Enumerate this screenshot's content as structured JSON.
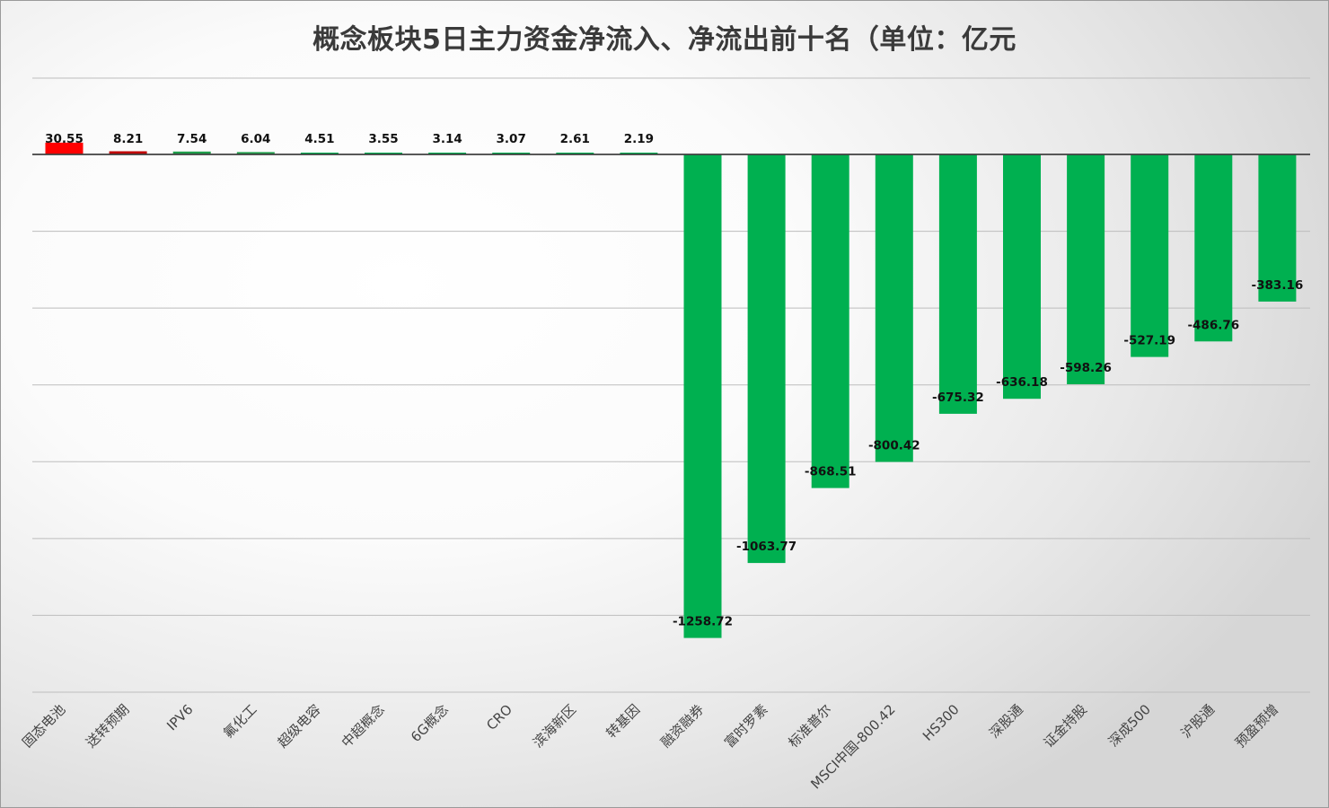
{
  "chart_data": {
    "type": "bar",
    "title": "概念板块5日主力资金净流入、净流出前十名（单位：亿元",
    "xlabel": "",
    "ylabel": "",
    "grid": true,
    "legend": "none",
    "ylim": [
      -1400,
      0
    ],
    "categories": [
      "固态电池",
      "送转预期",
      "IPV6",
      "氟化工",
      "超级电容",
      "中超概念",
      "6G概念",
      "CRO",
      "滨海新区",
      "转基因",
      "融资融券",
      "富时罗素",
      "标准普尔",
      "MSCI中国-800.42",
      "HS300",
      "深股通",
      "证金持股",
      "深成500",
      "沪股通",
      "预盈预增"
    ],
    "values": [
      30.55,
      8.21,
      7.54,
      6.04,
      4.51,
      3.55,
      3.14,
      3.07,
      2.61,
      2.19,
      -1258.72,
      -1063.77,
      -868.51,
      -800.42,
      -675.32,
      -636.18,
      -598.26,
      -527.19,
      -486.76,
      -383.16
    ],
    "value_labels": [
      "30.55",
      "8.21",
      "7.54",
      "6.04",
      "4.51",
      "3.55",
      "3.14",
      "3.07",
      "2.61",
      "2.19",
      "-1258.72",
      "-1063.77",
      "-868.51",
      "-800.42",
      "-675.32",
      "-636.18",
      "-598.26",
      "-527.19",
      "-486.76",
      "-383.16"
    ],
    "bar_colors": [
      "#ff0000",
      "#c00000",
      "#1e9e4a",
      "#1e9e4a",
      "#00b050",
      "#00b050",
      "#00b050",
      "#00b050",
      "#00b050",
      "#00b050",
      "#00b050",
      "#00b050",
      "#00b050",
      "#00b050",
      "#00b050",
      "#00b050",
      "#00b050",
      "#00b050",
      "#00b050",
      "#00b050"
    ]
  }
}
